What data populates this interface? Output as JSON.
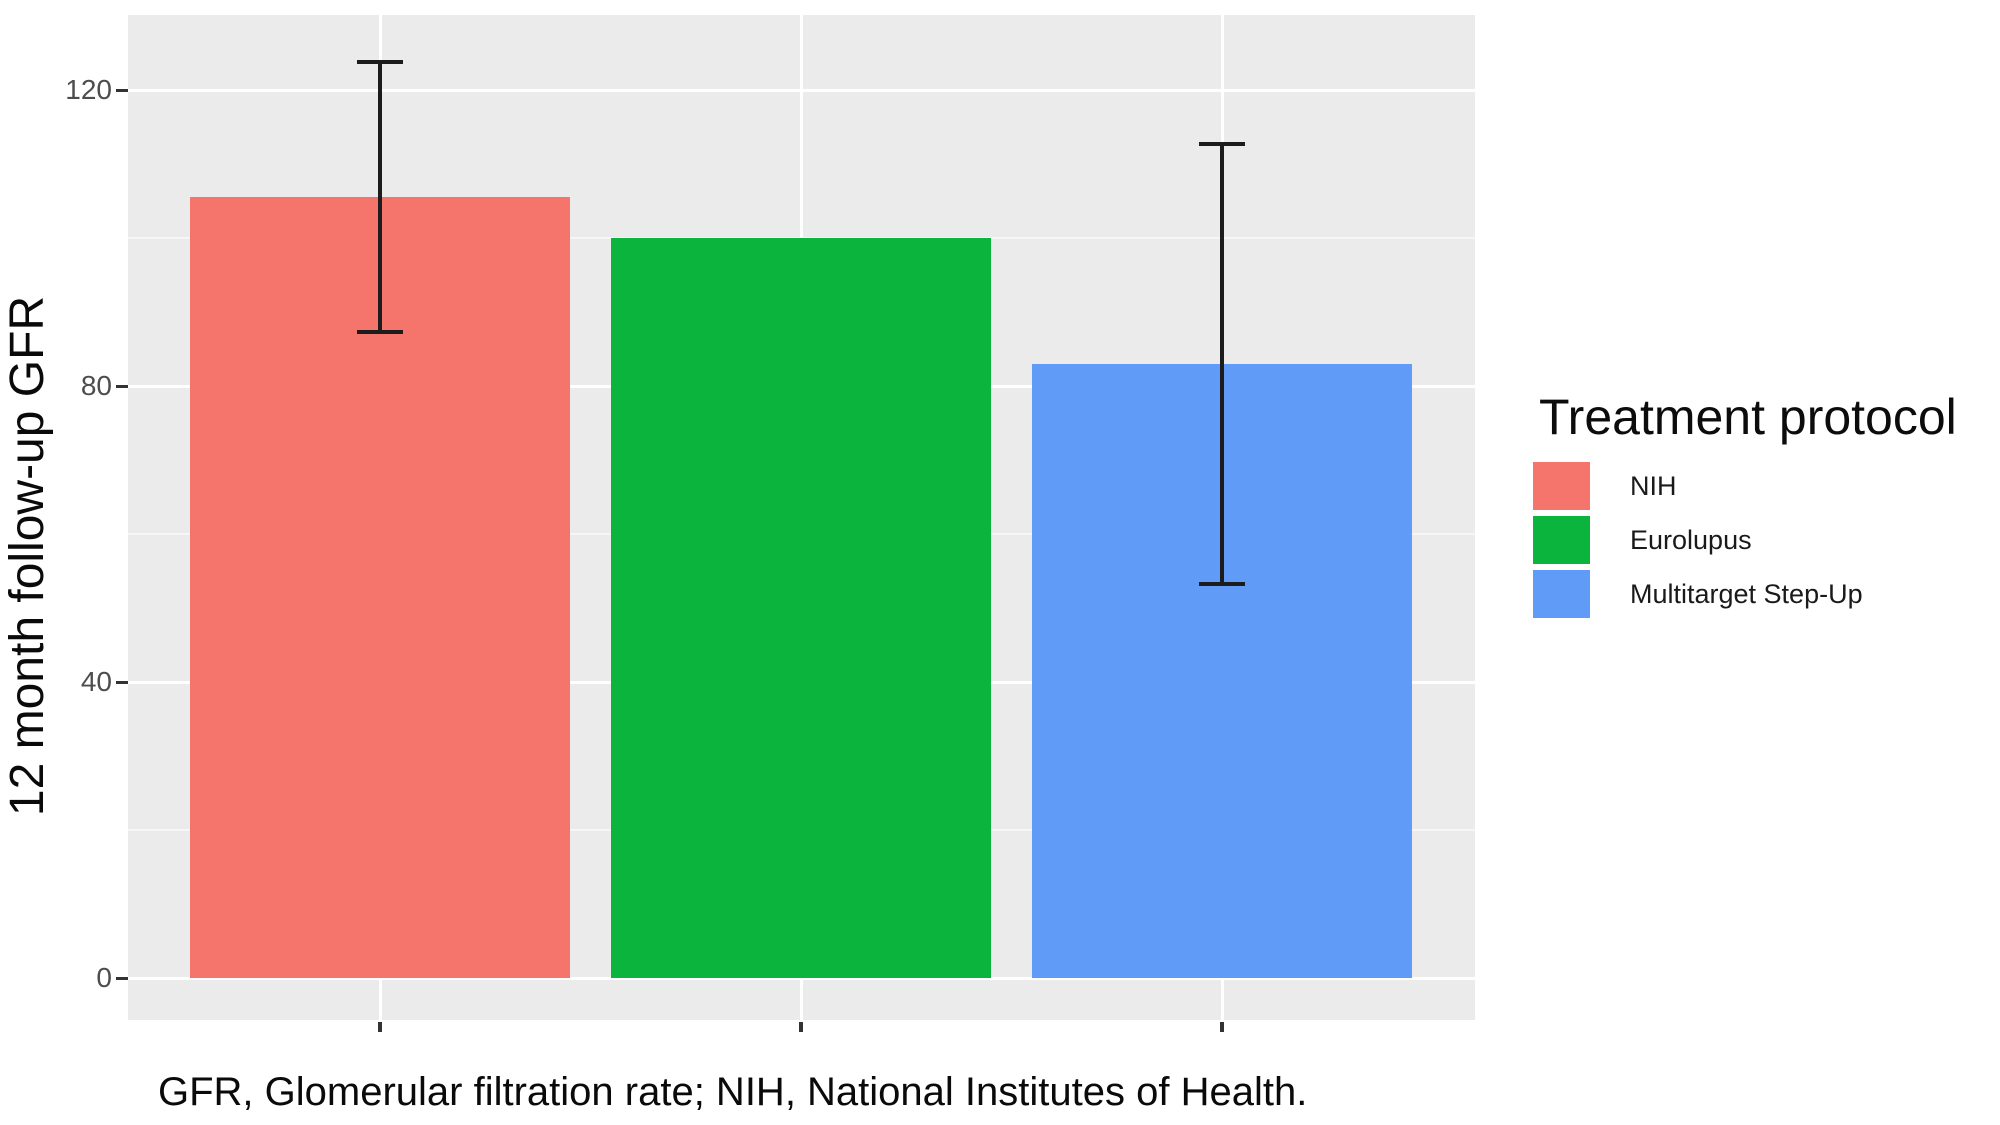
{
  "figure": {
    "background": "#FFFFFF",
    "panel_background": "#EBEBEB",
    "gridline_color": "#FFFFFF",
    "tick_color": "#333333",
    "tick_label_color": "#4D4D4D",
    "error_bar_color": "#1C1C1C"
  },
  "y_axis": {
    "title": "12 month follow-up GFR"
  },
  "legend": {
    "title": "Treatment protocol",
    "items": [
      {
        "label": "NIH",
        "color": "#F5756C"
      },
      {
        "label": "Eurolupus",
        "color": "#0BB43C"
      },
      {
        "label": "Multitarget Step-Up",
        "color": "#5F9BF7"
      }
    ]
  },
  "caption": "GFR, Glomerular filtration rate; NIH, National Institutes of Health.",
  "chart_data": {
    "type": "bar",
    "title": "",
    "categories": [
      "NIH",
      "Eurolupus",
      "Multitarget Step-Up"
    ],
    "values": [
      105.5,
      100,
      83
    ],
    "errors": [
      {
        "low": 87,
        "high": 124
      },
      null,
      {
        "low": 53,
        "high": 113
      }
    ],
    "colors": [
      "#F5756C",
      "#0BB43C",
      "#5F9BF7"
    ],
    "xlabel": "",
    "ylabel": "12 month follow-up GFR",
    "ylim": [
      0,
      130
    ],
    "yticks": [
      0,
      40,
      80,
      120
    ],
    "yticks_minor": [
      20,
      60,
      100
    ],
    "x_tick_labels": [
      "",
      "",
      ""
    ],
    "grid": true,
    "legend_position": "right",
    "legend_title": "Treatment protocol"
  }
}
